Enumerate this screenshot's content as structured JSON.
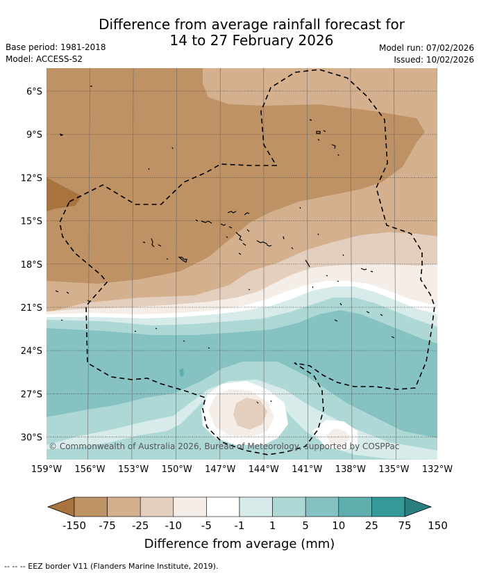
{
  "title_line1": "Difference from average rainfall forecast for",
  "title_line2": "14 to 27 February 2026",
  "base_period": "Base period: 1981-2018",
  "model": "Model: ACCESS-S2",
  "model_run": "Model run: 07/02/2026",
  "issued": "Issued: 10/02/2026",
  "copyright": "© Commonwealth of Australia 2026, Bureau of Meteorology, supported by COSPPac",
  "lat_labels": [
    "6°S",
    "9°S",
    "12°S",
    "15°S",
    "18°S",
    "21°S",
    "24°S",
    "27°S",
    "30°S"
  ],
  "lon_labels": [
    "159°W",
    "156°W",
    "153°W",
    "150°W",
    "147°W",
    "144°W",
    "141°W",
    "138°W",
    "135°W",
    "132°W"
  ],
  "colorbar": {
    "title": "Difference from average (mm)",
    "ticks": [
      "-150",
      "-75",
      "-25",
      "-10",
      "-5",
      "-1",
      "1",
      "5",
      "10",
      "25",
      "75",
      "150"
    ],
    "colors": [
      "#a9733d",
      "#bf9266",
      "#d4b08e",
      "#e4cfbe",
      "#f5ede7",
      "#ffffff",
      "#d6ebea",
      "#aed8d6",
      "#86c2c1",
      "#5faeae",
      "#35999a",
      "#2a7f7f"
    ]
  },
  "footnote": "--  --  -- EEZ border V11 (Flanders Marine Institute, 2019)."
}
